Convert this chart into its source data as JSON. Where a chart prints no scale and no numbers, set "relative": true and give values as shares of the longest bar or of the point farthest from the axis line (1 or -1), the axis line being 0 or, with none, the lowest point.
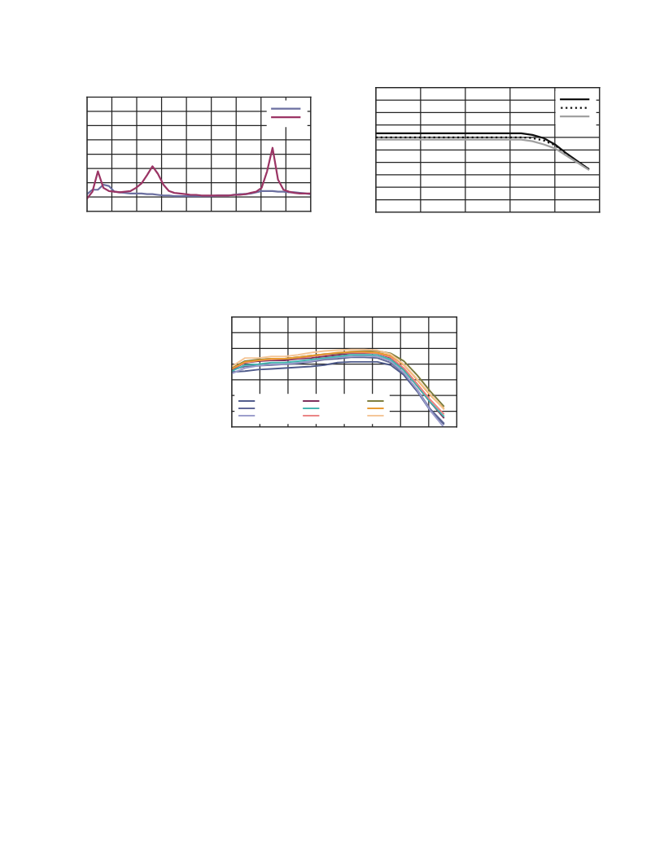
{
  "chart_data": [
    {
      "type": "line",
      "relative": true,
      "grid": true,
      "marker": "none",
      "categories": [
        null,
        null,
        null,
        null,
        null,
        null,
        null,
        null,
        null,
        null,
        null,
        null,
        null,
        null,
        null,
        null,
        null,
        null,
        null,
        null,
        null,
        null,
        null,
        null,
        null,
        null,
        null,
        null,
        null,
        null,
        null,
        null,
        null,
        null,
        null,
        null,
        null,
        null,
        null,
        null,
        null,
        null
      ],
      "series": [
        {
          "color": "#6b6fa0",
          "values": [
            0.27,
            0.34,
            0.34,
            0.42,
            0.4,
            0.31,
            0.3,
            0.29,
            0.28,
            0.28,
            0.28,
            0.27,
            0.27,
            0.26,
            0.25,
            0.25,
            0.24,
            0.24,
            0.24,
            0.24,
            0.24,
            0.24,
            0.24,
            0.24,
            0.25,
            0.25,
            0.25,
            0.26,
            0.27,
            0.27,
            0.28,
            0.3,
            0.32,
            0.32,
            0.32,
            0.31,
            0.31,
            0.3,
            0.3,
            0.29,
            0.28,
            0.27
          ]
        },
        {
          "color": "#9b3565",
          "values": [
            0.2,
            0.31,
            0.63,
            0.37,
            0.32,
            0.31,
            0.3,
            0.31,
            0.32,
            0.37,
            0.44,
            0.57,
            0.71,
            0.59,
            0.42,
            0.32,
            0.29,
            0.28,
            0.27,
            0.26,
            0.26,
            0.25,
            0.25,
            0.25,
            0.25,
            0.25,
            0.25,
            0.26,
            0.26,
            0.27,
            0.29,
            0.31,
            0.37,
            0.63,
            1.0,
            0.5,
            0.34,
            0.31,
            0.29,
            0.28,
            0.28,
            0.28
          ]
        }
      ]
    },
    {
      "type": "line",
      "relative": true,
      "grid": true,
      "marker": "none",
      "categories": [
        null,
        null,
        null,
        null,
        null,
        null,
        null,
        null,
        null,
        null,
        null,
        null,
        null,
        null,
        null,
        null,
        null,
        null,
        null,
        null,
        null
      ],
      "series": [
        {
          "color": "#111111",
          "line_style": "solid",
          "values": [
            1.0,
            1.0,
            1.0,
            1.0,
            1.0,
            1.0,
            1.0,
            1.0,
            1.0,
            1.0,
            1.0,
            1.0,
            1.0,
            1.0,
            0.98,
            0.94,
            0.86,
            0.75,
            0.65,
            0.55,
            null
          ]
        },
        {
          "color": "#111111",
          "line_style": "dotted",
          "values": [
            0.95,
            0.95,
            0.95,
            0.95,
            0.95,
            0.95,
            0.95,
            0.95,
            0.95,
            0.95,
            0.95,
            0.95,
            0.95,
            0.95,
            0.94,
            0.91,
            0.85,
            0.74,
            0.64,
            0.55,
            null
          ]
        },
        {
          "color": "#a0a0a0",
          "line_style": "solid",
          "values": [
            0.92,
            0.92,
            0.92,
            0.92,
            0.92,
            0.92,
            0.92,
            0.92,
            0.92,
            0.92,
            0.92,
            0.92,
            0.92,
            0.92,
            0.9,
            0.86,
            0.81,
            0.72,
            0.63,
            0.54,
            null
          ]
        }
      ]
    },
    {
      "type": "line",
      "relative": true,
      "grid": true,
      "marker": "none",
      "categories": [
        null,
        null,
        null,
        null,
        null,
        null,
        null,
        null,
        null,
        null,
        null,
        null,
        null,
        null,
        null,
        null,
        null,
        null
      ],
      "series": [
        {
          "color": "#4e5a8a",
          "values": [
            0.71,
            0.72,
            0.74,
            0.75,
            0.76,
            0.77,
            0.78,
            0.8,
            0.83,
            0.84,
            0.84,
            0.84,
            0.8,
            0.67,
            0.46,
            0.21,
            0.04,
            null
          ]
        },
        {
          "color": "#5f6796",
          "values": [
            0.74,
            0.78,
            0.79,
            0.8,
            0.81,
            0.82,
            0.84,
            0.87,
            0.88,
            0.9,
            0.9,
            0.89,
            0.83,
            0.69,
            0.48,
            0.23,
            0.05,
            null
          ]
        },
        {
          "color": "#9a9ccb",
          "values": [
            0.69,
            0.76,
            0.79,
            0.81,
            0.81,
            0.83,
            0.85,
            0.88,
            0.9,
            0.91,
            0.92,
            0.91,
            0.85,
            0.7,
            0.48,
            0.21,
            0.0,
            null
          ]
        },
        {
          "color": "#7a2b58",
          "values": [
            0.74,
            0.83,
            0.85,
            0.86,
            0.86,
            0.88,
            0.89,
            0.91,
            0.93,
            0.95,
            0.95,
            0.95,
            0.89,
            0.74,
            0.53,
            0.32,
            0.12,
            null
          ]
        },
        {
          "color": "#45b5b0",
          "values": [
            0.72,
            0.8,
            0.81,
            0.83,
            0.83,
            0.85,
            0.87,
            0.89,
            0.91,
            0.93,
            0.93,
            0.93,
            0.87,
            0.73,
            0.53,
            0.32,
            0.14,
            null
          ]
        },
        {
          "color": "#ea8282",
          "values": [
            0.75,
            0.83,
            0.86,
            0.87,
            0.88,
            0.89,
            0.91,
            0.93,
            0.95,
            0.96,
            0.96,
            0.95,
            0.9,
            0.76,
            0.56,
            0.35,
            0.17,
            null
          ]
        },
        {
          "color": "#7b7b3b",
          "values": [
            0.76,
            0.85,
            0.87,
            0.88,
            0.88,
            0.9,
            0.92,
            0.94,
            0.95,
            0.97,
            0.98,
            0.98,
            0.95,
            0.85,
            0.67,
            0.46,
            0.27,
            null
          ]
        },
        {
          "color": "#e89a30",
          "values": [
            0.75,
            0.84,
            0.86,
            0.88,
            0.88,
            0.9,
            0.92,
            0.94,
            0.96,
            0.97,
            0.97,
            0.96,
            0.92,
            0.8,
            0.61,
            0.41,
            0.24,
            null
          ]
        },
        {
          "color": "#f5c596",
          "values": [
            0.78,
            0.89,
            0.89,
            0.91,
            0.91,
            0.93,
            0.96,
            0.98,
            0.99,
            1.0,
            1.0,
            0.99,
            0.94,
            0.81,
            0.62,
            0.42,
            0.23,
            null
          ]
        }
      ]
    }
  ]
}
